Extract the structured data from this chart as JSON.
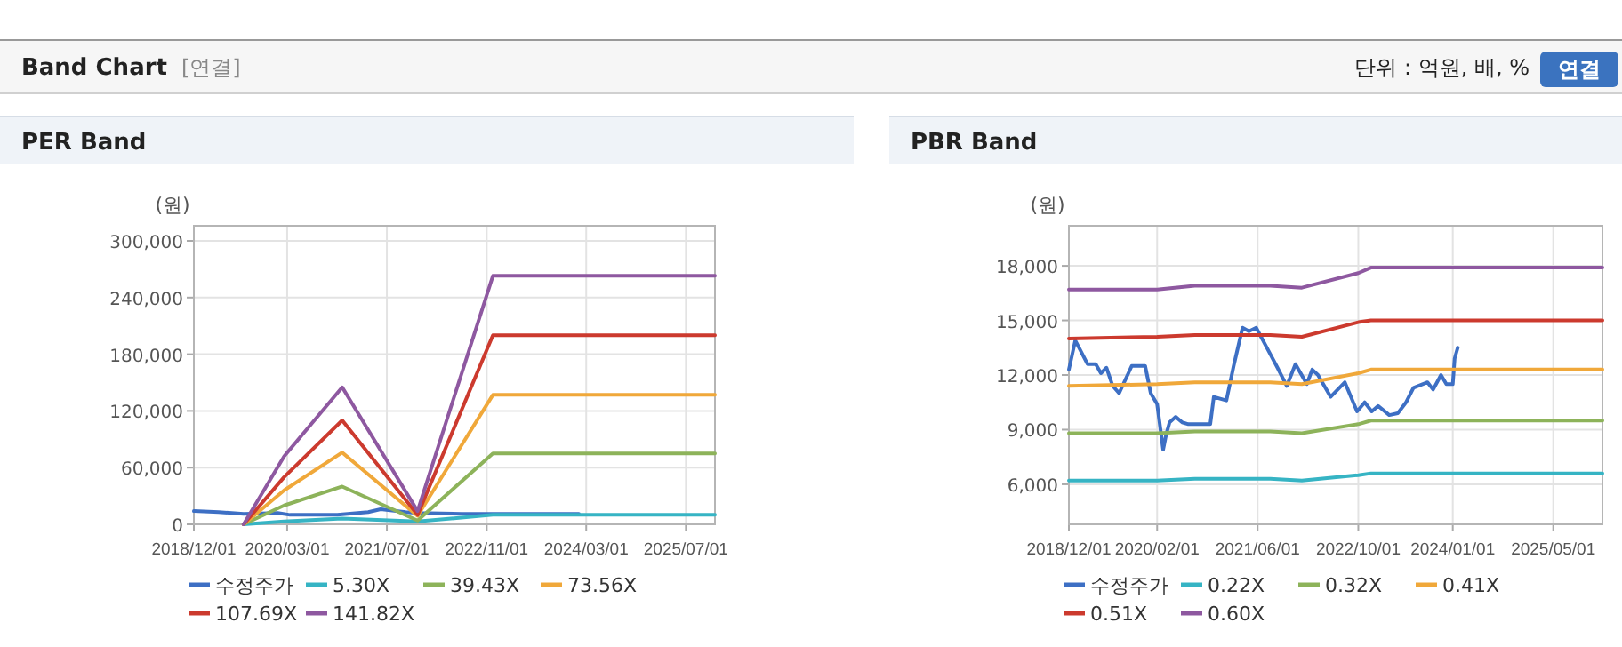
{
  "chart_data": [
    {
      "type": "other",
      "title": "Band Chart",
      "subtitle": "[연결]",
      "annotations": [
        "단위 : 억원, 배, %",
        "연결"
      ]
    },
    {
      "type": "line",
      "title": "PER Band",
      "ylabel": "(원)",
      "legend": "bottom",
      "grid": true,
      "xlim": [
        "2018-12-01",
        "2025-11-20"
      ],
      "xticks": [
        {
          "value": "2018-12-01",
          "label": "2018/12/01"
        },
        {
          "value": "2020-03-01",
          "label": "2020/03/01"
        },
        {
          "value": "2021-07-01",
          "label": "2021/07/01"
        },
        {
          "value": "2022-11-01",
          "label": "2022/11/01"
        },
        {
          "value": "2024-03-01",
          "label": "2024/03/01"
        },
        {
          "value": "2025-07-01",
          "label": "2025/07/01"
        }
      ],
      "ylim": [
        0,
        316000
      ],
      "yticks": [
        {
          "value": 0,
          "label": "0"
        },
        {
          "value": 60000,
          "label": "60,000"
        },
        {
          "value": 120000,
          "label": "120,000"
        },
        {
          "value": 180000,
          "label": "180,000"
        },
        {
          "value": 240000,
          "label": "240,000"
        },
        {
          "value": 300000,
          "label": "300,000"
        }
      ],
      "x": [
        "2019-08-01",
        "2020-02-15",
        "2020-11-25",
        "2021-11-28",
        "2022-12-01",
        "2025-11-20"
      ],
      "series": [
        {
          "name": "수정주가",
          "color": "#3d6fc4",
          "x": [
            "2018-12-01",
            "2019-04-01",
            "2019-08-01",
            "2020-01-15",
            "2020-03-15",
            "2020-11-01",
            "2021-04-01",
            "2021-06-01",
            "2021-10-01",
            "2021-12-01",
            "2022-07-01",
            "2023-05-01",
            "2024-01-25"
          ],
          "values": [
            14000,
            13000,
            11000,
            12000,
            10000,
            10000,
            13000,
            16000,
            13000,
            12000,
            11000,
            11000,
            11000
          ]
        },
        {
          "name": "5.30X",
          "color": "#36b4c4",
          "values": [
            0,
            3000,
            6000,
            3000,
            10000,
            10000
          ]
        },
        {
          "name": "39.43X",
          "color": "#8db35a",
          "values": [
            0,
            20000,
            40000,
            4000,
            75000,
            75000
          ]
        },
        {
          "name": "73.56X",
          "color": "#f0a83a",
          "values": [
            0,
            36000,
            76000,
            9000,
            137000,
            137000
          ]
        },
        {
          "name": "107.69X",
          "color": "#cc3a2e",
          "values": [
            0,
            50000,
            110000,
            10000,
            200000,
            200000
          ]
        },
        {
          "name": "141.82X",
          "color": "#8e58a0",
          "values": [
            0,
            72000,
            145000,
            14000,
            263000,
            263000
          ]
        }
      ]
    },
    {
      "type": "line",
      "title": "PBR Band",
      "ylabel": "(원)",
      "legend": "bottom",
      "grid": true,
      "xlim": [
        "2018-12-01",
        "2025-12-25"
      ],
      "xticks": [
        {
          "value": "2018-12-01",
          "label": "2018/12/01"
        },
        {
          "value": "2020-02-01",
          "label": "2020/02/01"
        },
        {
          "value": "2021-06-01",
          "label": "2021/06/01"
        },
        {
          "value": "2022-10-01",
          "label": "2022/10/01"
        },
        {
          "value": "2024-01-01",
          "label": "2024/01/01"
        },
        {
          "value": "2025-05-01",
          "label": "2025/05/01"
        }
      ],
      "ylim": [
        3800,
        20200
      ],
      "yticks": [
        {
          "value": 6000,
          "label": "6,000"
        },
        {
          "value": 9000,
          "label": "9,000"
        },
        {
          "value": 12000,
          "label": "12,000"
        },
        {
          "value": 15000,
          "label": "15,000"
        },
        {
          "value": 18000,
          "label": "18,000"
        }
      ],
      "x": [
        "2018-12-01",
        "2020-02-01",
        "2020-08-01",
        "2021-08-01",
        "2022-01-01",
        "2022-10-01",
        "2022-12-01",
        "2025-12-25"
      ],
      "series": [
        {
          "name": "수정주가",
          "color": "#3d6fc4",
          "x": [
            "2018-12-01",
            "2019-01-01",
            "2019-03-01",
            "2019-04-10",
            "2019-05-05",
            "2019-06-01",
            "2019-07-01",
            "2019-08-01",
            "2019-10-01",
            "2019-12-05",
            "2020-01-01",
            "2020-02-01",
            "2020-03-01",
            "2020-03-15",
            "2020-04-01",
            "2020-05-01",
            "2020-06-01",
            "2020-07-01",
            "2020-10-15",
            "2020-11-01",
            "2021-01-01",
            "2021-02-05",
            "2021-03-20",
            "2021-04-20",
            "2021-05-25",
            "2021-07-25",
            "2021-09-05",
            "2021-10-20",
            "2021-12-01",
            "2022-01-25",
            "2022-02-20",
            "2022-03-20",
            "2022-05-20",
            "2022-07-28",
            "2022-09-25",
            "2022-11-01",
            "2022-12-05",
            "2023-01-05",
            "2023-02-28",
            "2023-04-10",
            "2023-05-20",
            "2023-06-25",
            "2023-09-01",
            "2023-09-28",
            "2023-11-05",
            "2023-12-01",
            "2024-01-01",
            "2024-01-10",
            "2024-01-25"
          ],
          "values": [
            12300,
            13900,
            12600,
            12600,
            12100,
            12400,
            11400,
            11000,
            12500,
            12500,
            11000,
            10400,
            7900,
            8700,
            9400,
            9700,
            9400,
            9300,
            9300,
            10800,
            10600,
            12500,
            14600,
            14400,
            14600,
            13300,
            12400,
            11400,
            12600,
            11500,
            12300,
            12000,
            10800,
            11600,
            10000,
            10500,
            10000,
            10300,
            9800,
            9900,
            10500,
            11300,
            11600,
            11200,
            12000,
            11500,
            11500,
            12900,
            13500
          ]
        },
        {
          "name": "0.22X",
          "color": "#36b4c4",
          "values": [
            6200,
            6200,
            6300,
            6300,
            6200,
            6500,
            6600,
            6600
          ]
        },
        {
          "name": "0.32X",
          "color": "#8db35a",
          "values": [
            8800,
            8800,
            8900,
            8900,
            8800,
            9300,
            9500,
            9500
          ]
        },
        {
          "name": "0.41X",
          "color": "#f0a83a",
          "values": [
            11400,
            11500,
            11600,
            11600,
            11500,
            12100,
            12300,
            12300
          ]
        },
        {
          "name": "0.51X",
          "color": "#cc3a2e",
          "values": [
            14000,
            14100,
            14200,
            14200,
            14100,
            14900,
            15000,
            15000
          ]
        },
        {
          "name": "0.60X",
          "color": "#8e58a0",
          "values": [
            16700,
            16700,
            16900,
            16900,
            16800,
            17600,
            17900,
            17900
          ]
        }
      ]
    }
  ]
}
